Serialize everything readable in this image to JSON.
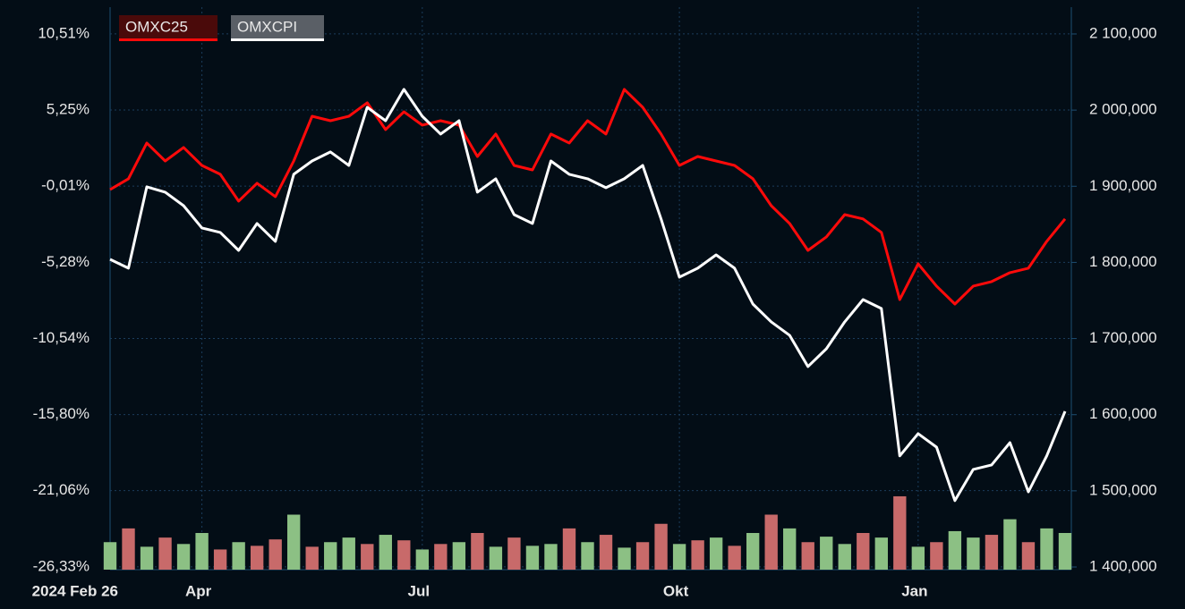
{
  "chart_data": {
    "type": "line",
    "categories": [
      "2024 Feb 26",
      null,
      null,
      null,
      null,
      "Apr",
      null,
      null,
      null,
      null,
      null,
      null,
      null,
      null,
      null,
      null,
      null,
      "Jul",
      null,
      null,
      null,
      null,
      null,
      null,
      null,
      null,
      null,
      null,
      null,
      null,
      null,
      "Okt",
      null,
      null,
      null,
      null,
      null,
      null,
      null,
      null,
      null,
      null,
      null,
      null,
      "Jan",
      null,
      null,
      null,
      null,
      null,
      null,
      null,
      null
    ],
    "series": [
      {
        "name": "OMXC25",
        "color": "#ff0a0a",
        "values": [
          -0.25,
          0.5,
          2.97,
          1.73,
          2.66,
          1.42,
          0.81,
          -1.05,
          0.19,
          -0.74,
          1.73,
          4.82,
          4.51,
          4.82,
          5.75,
          3.9,
          5.13,
          4.21,
          4.51,
          4.21,
          2.04,
          3.59,
          1.42,
          1.11,
          3.59,
          2.97,
          4.51,
          3.59,
          6.68,
          5.44,
          3.59,
          1.42,
          2.04,
          1.73,
          1.42,
          0.5,
          -1.36,
          -2.59,
          -4.45,
          -3.52,
          -1.98,
          -2.28,
          -3.21,
          -7.85,
          -5.38,
          -6.92,
          -8.16,
          -6.92,
          -6.61,
          -5.99,
          -5.68,
          -3.83,
          -2.28
        ]
      },
      {
        "name": "OMXCPI",
        "color": "#ffffff",
        "values": [
          -5.07,
          -5.68,
          -0.06,
          -0.43,
          -1.36,
          -2.9,
          -3.21,
          -4.45,
          -2.59,
          -3.83,
          0.81,
          1.73,
          2.35,
          1.42,
          5.44,
          4.51,
          6.68,
          4.82,
          3.59,
          4.51,
          -0.43,
          0.5,
          -1.98,
          -2.59,
          1.73,
          0.81,
          0.5,
          -0.12,
          0.5,
          1.42,
          -2.28,
          -6.3,
          -5.68,
          -4.76,
          -5.68,
          -8.16,
          -9.39,
          -10.32,
          -12.48,
          -11.25,
          -9.39,
          -7.85,
          -8.47,
          -18.66,
          -17.12,
          -18.05,
          -21.75,
          -19.59,
          -19.28,
          -17.74,
          -21.14,
          -18.66,
          -15.57
        ]
      }
    ],
    "volume": {
      "values": [
        30,
        45,
        25,
        35,
        28,
        40,
        22,
        30,
        26,
        33,
        60,
        25,
        30,
        35,
        28,
        38,
        32,
        22,
        28,
        30,
        40,
        25,
        35,
        26,
        28,
        45,
        30,
        38,
        24,
        30,
        50,
        28,
        32,
        35,
        26,
        40,
        60,
        45,
        30,
        36,
        28,
        40,
        35,
        80,
        25,
        30,
        42,
        35,
        38,
        55,
        30,
        45,
        40
      ],
      "colors": [
        "#8cc084",
        "#c86a6a",
        "#8cc084",
        "#c86a6a",
        "#8cc084",
        "#8cc084",
        "#c86a6a",
        "#8cc084",
        "#c86a6a",
        "#c86a6a",
        "#8cc084",
        "#c86a6a",
        "#8cc084",
        "#8cc084",
        "#c86a6a",
        "#8cc084",
        "#c86a6a",
        "#8cc084",
        "#c86a6a",
        "#8cc084",
        "#c86a6a",
        "#8cc084",
        "#c86a6a",
        "#8cc084",
        "#8cc084",
        "#c86a6a",
        "#8cc084",
        "#c86a6a",
        "#8cc084",
        "#c86a6a",
        "#c86a6a",
        "#8cc084",
        "#c86a6a",
        "#8cc084",
        "#c86a6a",
        "#8cc084",
        "#c86a6a",
        "#8cc084",
        "#c86a6a",
        "#8cc084",
        "#8cc084",
        "#c86a6a",
        "#8cc084",
        "#c86a6a",
        "#8cc084",
        "#c86a6a",
        "#8cc084",
        "#8cc084",
        "#c86a6a",
        "#8cc084",
        "#c86a6a",
        "#8cc084",
        "#8cc084"
      ]
    },
    "ylim": [
      -26.52,
      12.36
    ],
    "yticks": [
      {
        "value": 10.51,
        "label": "10,51%"
      },
      {
        "value": 5.25,
        "label": "5,25%"
      },
      {
        "value": -0.01,
        "label": "-0,01%"
      },
      {
        "value": -5.28,
        "label": "-5,28%"
      },
      {
        "value": -10.54,
        "label": "-10,54%"
      },
      {
        "value": -15.8,
        "label": "-15,80%"
      },
      {
        "value": -21.06,
        "label": "-21,06%"
      },
      {
        "value": -26.33,
        "label": "-26,33%"
      }
    ],
    "y2lim": [
      1396500,
      2135200
    ],
    "y2ticks": [
      {
        "value": 2100000,
        "label": "2 100,000"
      },
      {
        "value": 2000000,
        "label": "2 000,000"
      },
      {
        "value": 1900000,
        "label": "1 900,000"
      },
      {
        "value": 1800000,
        "label": "1 800,000"
      },
      {
        "value": 1700000,
        "label": "1 700,000"
      },
      {
        "value": 1600000,
        "label": "1 600,000"
      },
      {
        "value": 1500000,
        "label": "1 500,000"
      },
      {
        "value": 1400000,
        "label": "1 400,000"
      }
    ],
    "grid": true
  }
}
